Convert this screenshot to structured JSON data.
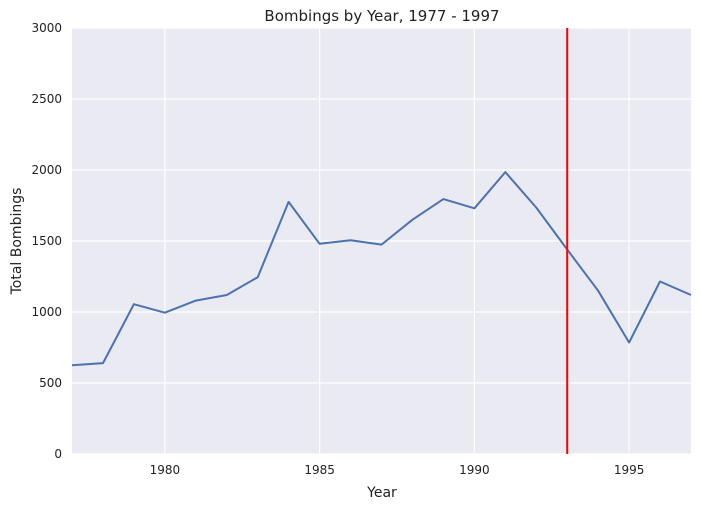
{
  "chart_data": {
    "type": "line",
    "title": "Bombings by Year, 1977 - 1997",
    "xlabel": "Year",
    "ylabel": "Total Bombings",
    "xlim": [
      1977,
      1997
    ],
    "ylim": [
      0,
      3000
    ],
    "x_ticks": [
      1980,
      1985,
      1990,
      1995
    ],
    "y_ticks": [
      0,
      500,
      1000,
      1500,
      2000,
      2500,
      3000
    ],
    "grid": true,
    "background_color": "#EAEAF2",
    "series": [
      {
        "color": "#4C72B0",
        "x": [
          1977,
          1978,
          1979,
          1980,
          1981,
          1982,
          1983,
          1984,
          1985,
          1986,
          1987,
          1988,
          1989,
          1990,
          1991,
          1992,
          1993,
          1994,
          1995,
          1996,
          1997
        ],
        "y": [
          625,
          640,
          1055,
          995,
          1080,
          1120,
          1245,
          1775,
          1480,
          1505,
          1475,
          1650,
          1795,
          1730,
          1985,
          1735,
          1440,
          1150,
          785,
          1215,
          1120
        ]
      }
    ],
    "vertical_line": {
      "x": 1993,
      "color": "#FF0000"
    }
  }
}
